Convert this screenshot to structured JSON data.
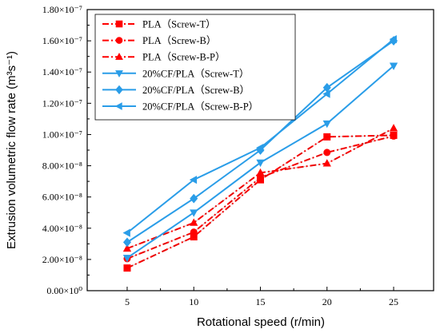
{
  "chart_data": {
    "type": "line",
    "xlabel": "Rotational speed (r/min)",
    "ylabel": "Extrusion volumetric flow rate (m³s⁻¹)",
    "x": [
      5,
      10,
      15,
      20,
      25
    ],
    "xlim": [
      2,
      28
    ],
    "ylim": [
      0,
      1.8e-07
    ],
    "x_ticks": [
      "5",
      "10",
      "15",
      "20",
      "25"
    ],
    "y_ticks": [
      {
        "value": 0,
        "label": "0.00×10⁰"
      },
      {
        "value": 2e-08,
        "label": "2.00×10⁻⁸"
      },
      {
        "value": 4e-08,
        "label": "4.00×10⁻⁸"
      },
      {
        "value": 6e-08,
        "label": "6.00×10⁻⁸"
      },
      {
        "value": 8e-08,
        "label": "8.00×10⁻⁸"
      },
      {
        "value": 1e-07,
        "label": "1.00×10⁻⁷"
      },
      {
        "value": 1.2e-07,
        "label": "1.20×10⁻⁷"
      },
      {
        "value": 1.4e-07,
        "label": "1.40×10⁻⁷"
      },
      {
        "value": 1.6e-07,
        "label": "1.60×10⁻⁷"
      },
      {
        "value": 1.8e-07,
        "label": "1.80×10⁻⁷"
      }
    ],
    "grid": false,
    "legend_position": "top-left",
    "series": [
      {
        "name": "PLA（Screw-T）",
        "values": [
          1.45e-08,
          3.45e-08,
          7.1e-08,
          9.85e-08,
          9.95e-08
        ],
        "color": "#ff0000",
        "marker": "square",
        "line": "dashdot"
      },
      {
        "name": "PLA（Screw-B）",
        "values": [
          2.05e-08,
          3.75e-08,
          7.25e-08,
          8.85e-08,
          9.9e-08
        ],
        "color": "#ff0000",
        "marker": "circle",
        "line": "dashdot"
      },
      {
        "name": "PLA（Screw-B-P）",
        "values": [
          2.7e-08,
          4.35e-08,
          7.55e-08,
          8.15e-08,
          1.04e-07
        ],
        "color": "#ff0000",
        "marker": "triangle-up",
        "line": "dashdot"
      },
      {
        "name": "20%CF/PLA（Screw-T）",
        "values": [
          2.1e-08,
          5e-08,
          8.2e-08,
          1.07e-07,
          1.44e-07
        ],
        "color": "#2a9de8",
        "marker": "triangle-down",
        "line": "solid"
      },
      {
        "name": "20%CF/PLA（Screw-B）",
        "values": [
          3.1e-08,
          5.9e-08,
          9e-08,
          1.3e-07,
          1.6e-07
        ],
        "color": "#2a9de8",
        "marker": "diamond",
        "line": "solid"
      },
      {
        "name": "20%CF/PLA（Screw-B-P）",
        "values": [
          3.7e-08,
          7.1e-08,
          9.15e-08,
          1.26e-07,
          1.61e-07
        ],
        "color": "#2a9de8",
        "marker": "triangle-left",
        "line": "solid"
      }
    ],
    "extra_colors": {
      "dashdot_overlay": "#8b1a1a"
    }
  }
}
